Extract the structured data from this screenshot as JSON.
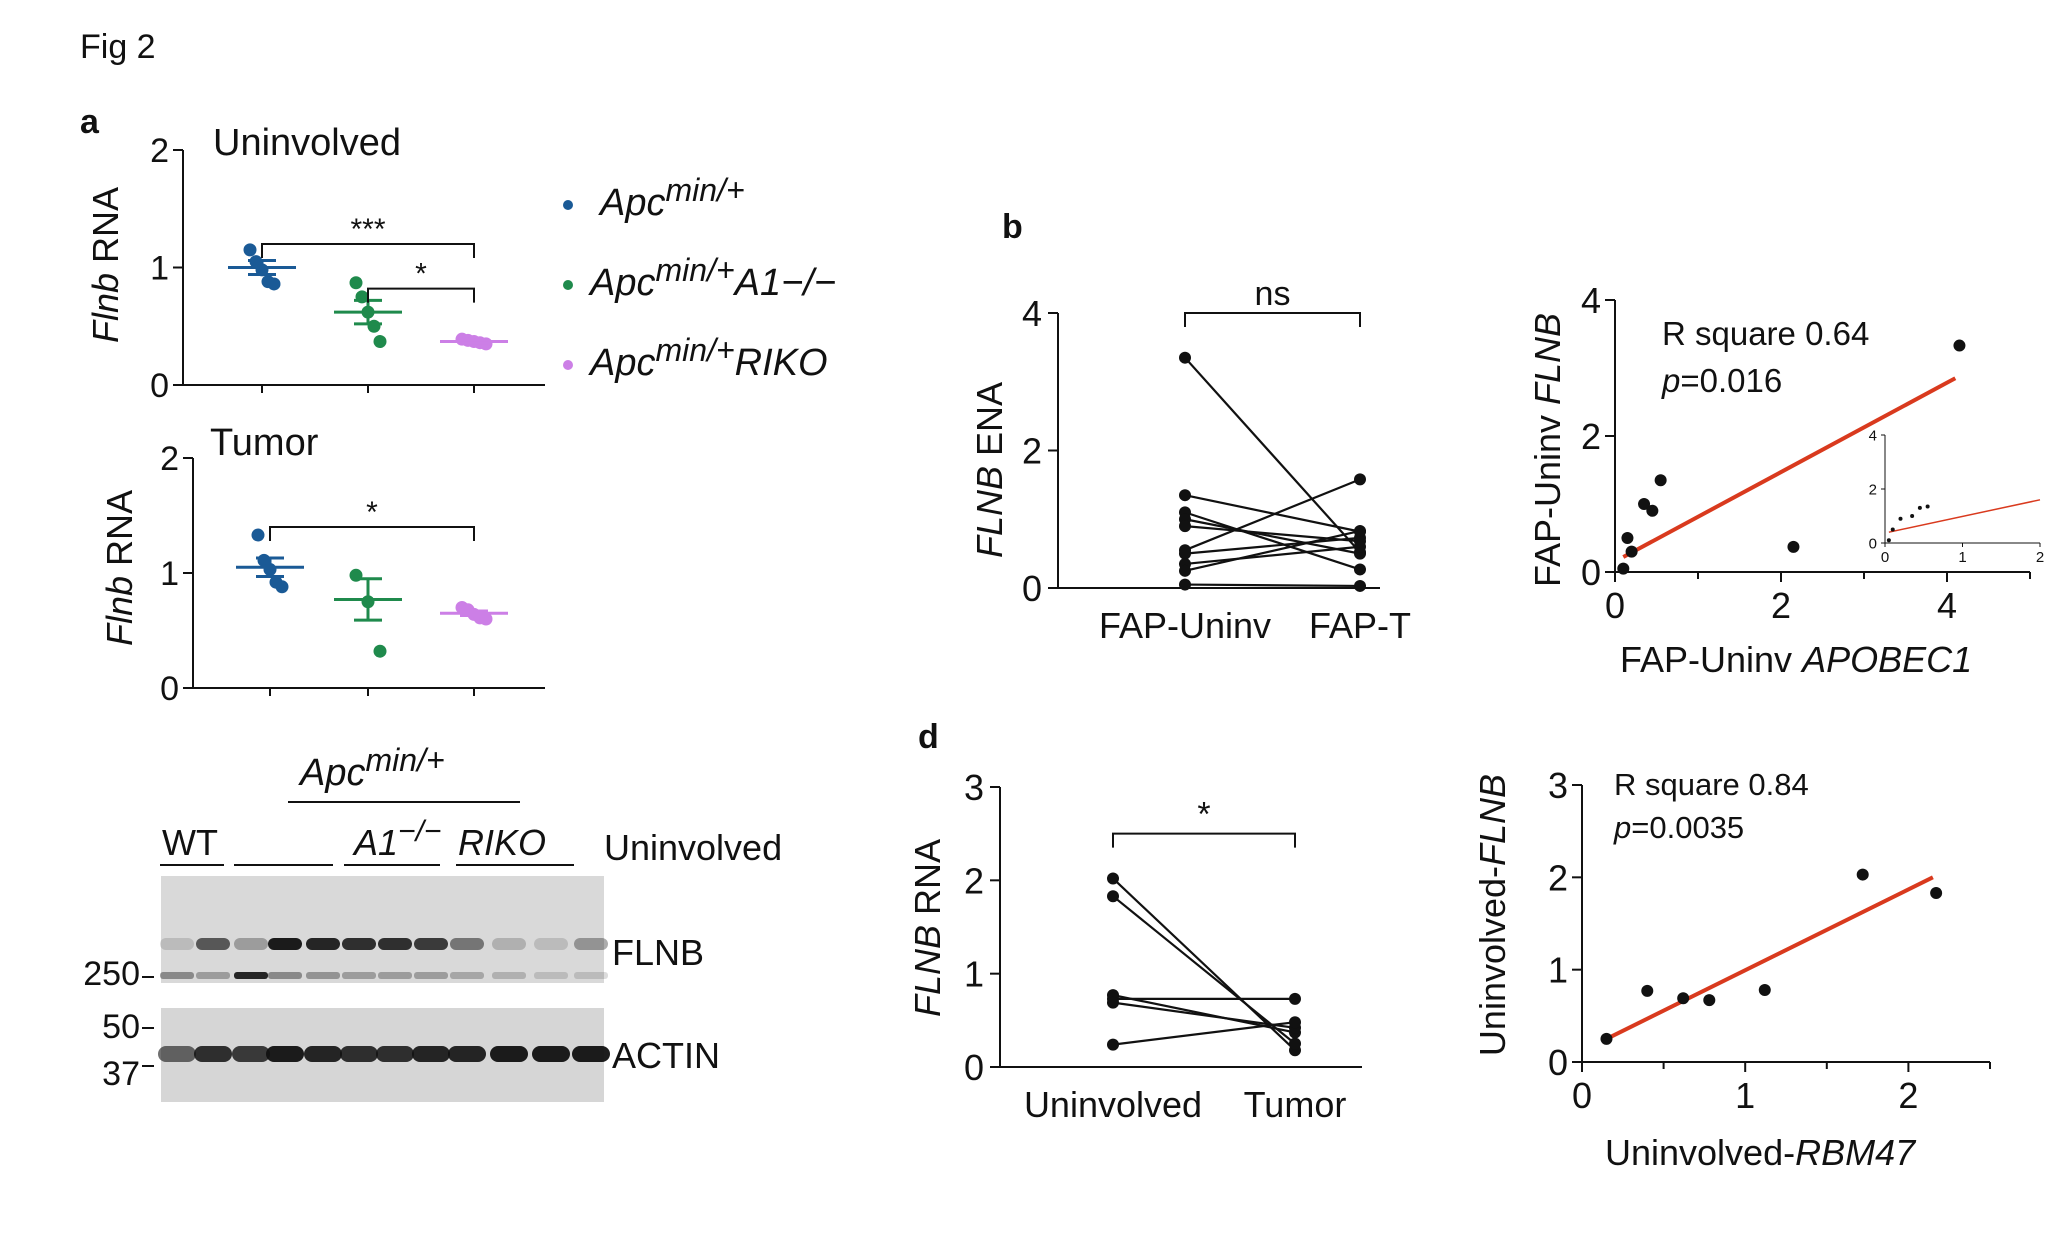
{
  "figure_label": "Fig 2",
  "panels": {
    "a": "a",
    "b": "b",
    "d": "d"
  },
  "colors": {
    "apc": "#1a5a96",
    "apc_a1": "#1f8a4c",
    "apc_riko": "#cc7fe6",
    "fit_line": "#d93a1e",
    "mark": "#111111"
  },
  "legend": [
    {
      "base": "Apc",
      "sup": "min/+",
      "suffix": "",
      "color": "#1a5a96"
    },
    {
      "base": "Apc",
      "sup": "min/+",
      "suffix": "A1−/−",
      "color": "#1f8a4c"
    },
    {
      "base": "Apc",
      "sup": "min/+",
      "suffix": "RIKO",
      "color": "#cc7fe6"
    }
  ],
  "western_blot": {
    "group_base": "Apc",
    "group_sup": "min/+",
    "lane_labels": [
      "WT",
      "A1",
      "RIKO"
    ],
    "a1_sup": "−/−",
    "condition": "Uninvolved",
    "bands": [
      {
        "name": "FLNB",
        "markers": [
          "250"
        ]
      },
      {
        "name": "ACTIN",
        "markers": [
          "50",
          "37"
        ]
      }
    ]
  },
  "chart_data": [
    {
      "id": "a_uninvolved",
      "type": "scatter",
      "title": "Uninvolved",
      "ylabel_italic": "Flnb",
      "ylabel_rest": " RNA",
      "ylim": [
        0,
        2
      ],
      "yticks": [
        "0",
        "1",
        "2"
      ],
      "groups": [
        {
          "color": "#1a5a96",
          "points": [
            1.15,
            1.05,
            0.98,
            0.88,
            0.86
          ],
          "mean": 1.0,
          "sem": 0.06
        },
        {
          "color": "#1f8a4c",
          "points": [
            0.87,
            0.75,
            0.62,
            0.5,
            0.37
          ],
          "mean": 0.62,
          "sem": 0.1
        },
        {
          "color": "#cc7fe6",
          "points": [
            0.39,
            0.38,
            0.37,
            0.36,
            0.35
          ],
          "mean": 0.37,
          "sem": 0.01
        }
      ],
      "significance": [
        {
          "from": 0,
          "to": 2,
          "label": "***",
          "y": 1.2
        },
        {
          "from": 1,
          "to": 2,
          "label": "*",
          "y": 0.82
        }
      ]
    },
    {
      "id": "a_tumor",
      "type": "scatter",
      "title": "Tumor",
      "ylabel_italic": "Flnb",
      "ylabel_rest": " RNA",
      "ylim": [
        0,
        2
      ],
      "yticks": [
        "0",
        "1",
        "2"
      ],
      "groups": [
        {
          "color": "#1a5a96",
          "points": [
            1.33,
            1.11,
            1.03,
            0.92,
            0.88
          ],
          "mean": 1.05,
          "sem": 0.08
        },
        {
          "color": "#1f8a4c",
          "points": [
            0.98,
            0.75,
            0.32
          ],
          "mean": 0.77,
          "sem": 0.18
        },
        {
          "color": "#cc7fe6",
          "points": [
            0.7,
            0.68,
            0.64,
            0.61,
            0.6
          ],
          "mean": 0.65,
          "sem": 0.02
        }
      ],
      "significance": [
        {
          "from": 0,
          "to": 2,
          "label": "*",
          "y": 1.4
        }
      ]
    },
    {
      "id": "b_paired",
      "type": "line",
      "ylabel_italic": "FLNB",
      "ylabel_rest": " ENA",
      "categories": [
        "FAP-Uninv",
        "FAP-T"
      ],
      "ylim": [
        0,
        4
      ],
      "yticks": [
        "0",
        "2",
        "4"
      ],
      "pairs": [
        [
          3.35,
          0.52
        ],
        [
          1.35,
          0.82
        ],
        [
          1.1,
          0.27
        ],
        [
          1.0,
          0.5
        ],
        [
          0.9,
          0.68
        ],
        [
          0.55,
          1.58
        ],
        [
          0.5,
          0.73
        ],
        [
          0.35,
          0.6
        ],
        [
          0.25,
          0.83
        ],
        [
          0.05,
          0.03
        ]
      ],
      "significance": {
        "label": "ns",
        "y": 4.0
      }
    },
    {
      "id": "b_scatter",
      "type": "scatter",
      "xlabel": "FAP-Uninv ",
      "xlabel_italic": "APOBEC1",
      "ylabel": "FAP-Uninv ",
      "ylabel_italic": "FLNB",
      "xlim": [
        0,
        5
      ],
      "ylim": [
        0,
        4
      ],
      "xticks": [
        "0",
        "2",
        "4"
      ],
      "yticks": [
        "0",
        "2",
        "4"
      ],
      "points": [
        [
          0.1,
          0.05
        ],
        [
          0.15,
          0.5
        ],
        [
          0.2,
          0.3
        ],
        [
          0.35,
          1.0
        ],
        [
          0.45,
          0.9
        ],
        [
          0.55,
          1.35
        ],
        [
          2.15,
          0.37
        ],
        [
          4.15,
          3.33
        ]
      ],
      "fit": {
        "x": [
          0.1,
          4.1
        ],
        "y": [
          0.22,
          2.85
        ]
      },
      "annotation": {
        "r_label": "R square 0.64",
        "p_italic": "p",
        "p_rest": "=0.016"
      },
      "inset": {
        "xlim": [
          0,
          2
        ],
        "ylim": [
          0,
          4
        ],
        "xticks": [
          "0",
          "1",
          "2"
        ],
        "yticks": [
          "0",
          "2",
          "4"
        ],
        "points": [
          [
            0.05,
            0.1
          ],
          [
            0.1,
            0.5
          ],
          [
            0.2,
            0.9
          ],
          [
            0.35,
            1.0
          ],
          [
            0.45,
            1.3
          ],
          [
            0.55,
            1.35
          ]
        ],
        "fit": {
          "x": [
            0.05,
            2.0
          ],
          "y": [
            0.4,
            1.6
          ]
        }
      }
    },
    {
      "id": "d_paired",
      "type": "line",
      "ylabel_italic": "FLNB",
      "ylabel_rest": " RNA",
      "categories": [
        "Uninvolved",
        "Tumor"
      ],
      "ylim": [
        0,
        3
      ],
      "yticks": [
        "0",
        "1",
        "2",
        "3"
      ],
      "pairs": [
        [
          2.02,
          0.18
        ],
        [
          1.83,
          0.25
        ],
        [
          0.77,
          0.37
        ],
        [
          0.73,
          0.73
        ],
        [
          0.69,
          0.42
        ],
        [
          0.24,
          0.48
        ]
      ],
      "significance": {
        "label": "*",
        "y": 2.5
      }
    },
    {
      "id": "d_scatter",
      "type": "scatter",
      "xlabel": "Uninvolved-",
      "xlabel_italic": "RBM47",
      "ylabel": "Uninvolved-",
      "ylabel_italic": "FLNB",
      "xlim": [
        0,
        2.5
      ],
      "ylim": [
        0,
        3
      ],
      "xticks": [
        "0",
        "1",
        "2"
      ],
      "yticks": [
        "0",
        "1",
        "2",
        "3"
      ],
      "points": [
        [
          0.15,
          0.25
        ],
        [
          0.4,
          0.77
        ],
        [
          0.62,
          0.69
        ],
        [
          0.78,
          0.67
        ],
        [
          1.12,
          0.78
        ],
        [
          1.72,
          2.03
        ],
        [
          2.17,
          1.83
        ]
      ],
      "fit": {
        "x": [
          0.15,
          2.15
        ],
        "y": [
          0.25,
          2.0
        ]
      },
      "annotation": {
        "r_label": "R square 0.84",
        "p_italic": "p",
        "p_rest": "=0.0035"
      }
    }
  ]
}
